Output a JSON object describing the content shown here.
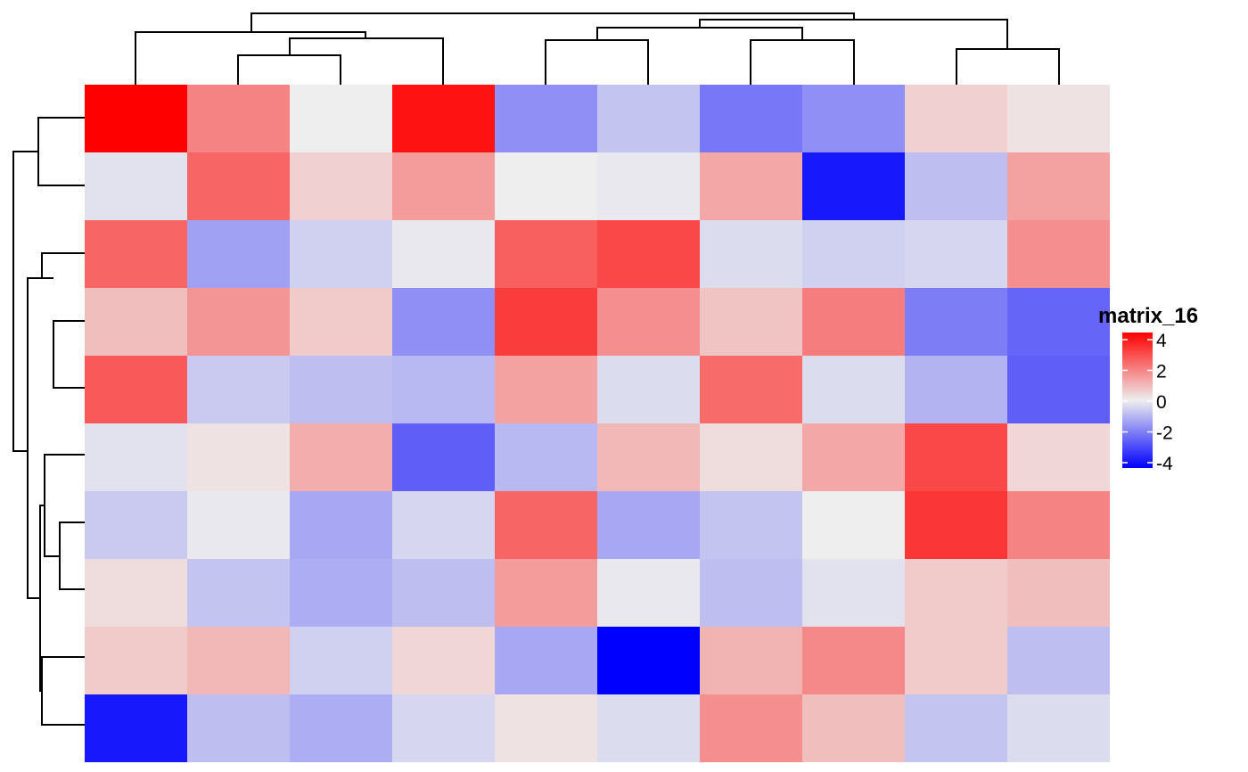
{
  "chart_data": {
    "type": "heatmap",
    "title": "",
    "xlabel": "",
    "ylabel": "",
    "legend": {
      "title": "matrix_16",
      "placement": "right",
      "ticks": [
        4,
        2,
        0,
        -2,
        -4
      ],
      "tick_labels": [
        "4",
        "2",
        "0",
        "-2",
        "-4"
      ],
      "range": [
        -4,
        4
      ],
      "colors": {
        "low": "#0000FF",
        "mid": "#EEEEEE",
        "high": "#FF0000"
      }
    },
    "rows": 10,
    "cols": 10,
    "values": [
      [
        4.0,
        1.8,
        0.0,
        3.7,
        -1.6,
        -0.7,
        -2.0,
        -1.6,
        0.5,
        0.2
      ],
      [
        -0.2,
        2.3,
        0.5,
        1.4,
        0.0,
        -0.1,
        1.2,
        -3.6,
        -0.8,
        1.3
      ],
      [
        2.3,
        -1.3,
        -0.5,
        -0.1,
        2.4,
        2.8,
        -0.3,
        -0.5,
        -0.4,
        1.6
      ],
      [
        0.8,
        1.5,
        0.6,
        -1.6,
        3.0,
        1.6,
        0.7,
        1.9,
        -1.9,
        -2.3
      ],
      [
        2.5,
        -0.6,
        -0.8,
        -0.9,
        1.3,
        -0.3,
        2.2,
        -0.3,
        -1.0,
        -2.4
      ],
      [
        -0.2,
        0.2,
        1.1,
        -2.4,
        -0.9,
        0.9,
        0.3,
        1.2,
        2.8,
        0.4
      ],
      [
        -0.6,
        -0.1,
        -1.2,
        -0.4,
        2.3,
        -1.2,
        -0.7,
        0.0,
        3.1,
        1.8
      ],
      [
        0.3,
        -0.7,
        -1.1,
        -0.8,
        1.4,
        -0.1,
        -0.8,
        -0.2,
        0.6,
        0.8
      ],
      [
        0.6,
        0.9,
        -0.5,
        0.4,
        -1.2,
        -4.0,
        1.0,
        1.7,
        0.6,
        -0.8
      ],
      [
        -3.6,
        -0.8,
        -1.1,
        -0.4,
        0.2,
        -0.3,
        1.6,
        0.8,
        -0.7,
        -0.3
      ]
    ],
    "col_dendrogram": true,
    "row_dendrogram": true,
    "grid": false
  }
}
